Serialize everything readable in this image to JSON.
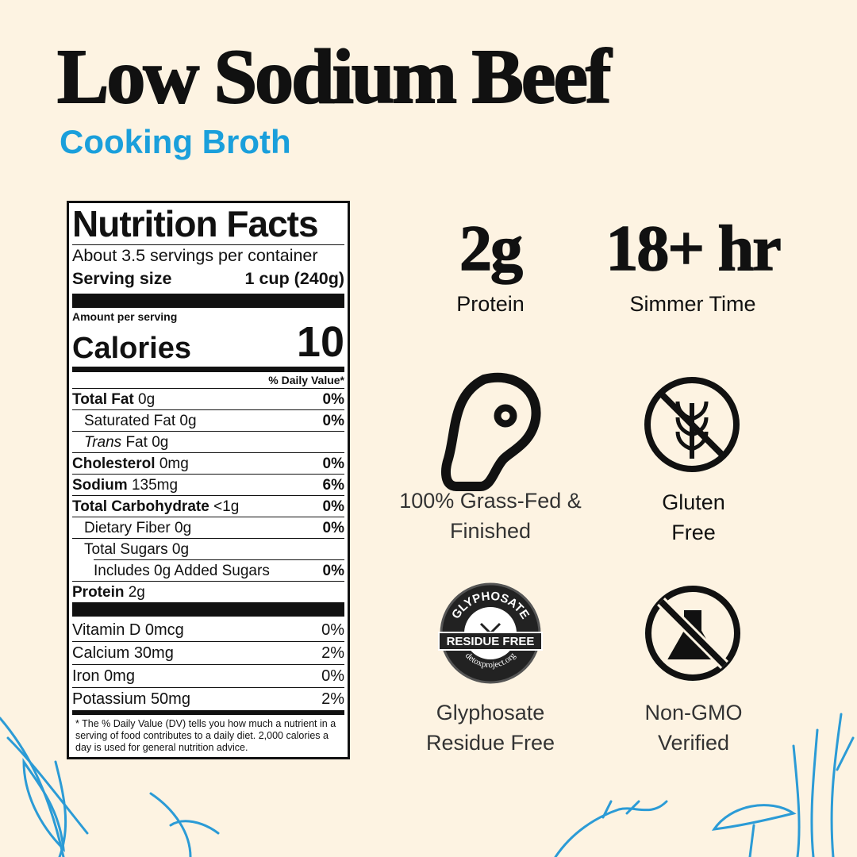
{
  "header": {
    "title": "Low Sodium Beef",
    "subtitle": "Cooking Broth"
  },
  "nutrition": {
    "title": "Nutrition Facts",
    "servings": "About 3.5 servings per container",
    "serving_size_label": "Serving size",
    "serving_size": "1 cup (240g)",
    "amount_per_serving": "Amount per serving",
    "calories_label": "Calories",
    "calories": "10",
    "dv_header": "% Daily Value*",
    "rows": [
      {
        "name": "Total Fat",
        "amount": "0g",
        "dv": "0%"
      },
      {
        "name": "Saturated Fat",
        "amount": "0g",
        "dv": "0%"
      },
      {
        "prefix": "Trans",
        "name": "Fat",
        "amount": "0g"
      },
      {
        "name": "Cholesterol",
        "amount": "0mg",
        "dv": "0%"
      },
      {
        "name": "Sodium",
        "amount": "135mg",
        "dv": "6%"
      },
      {
        "name": "Total Carbohydrate",
        "amount": "<1g",
        "dv": "0%"
      },
      {
        "name": "Dietary Fiber",
        "amount": "0g",
        "dv": "0%"
      },
      {
        "name": "Total Sugars",
        "amount": "0g"
      },
      {
        "name": "Includes 0g Added Sugars",
        "dv": "0%"
      },
      {
        "name": "Protein",
        "amount": "2g"
      }
    ],
    "micronutrients": [
      {
        "name": "Vitamin D",
        "amount": "0mcg",
        "dv": "0%"
      },
      {
        "name": "Calcium",
        "amount": "30mg",
        "dv": "2%"
      },
      {
        "name": "Iron",
        "amount": "0mg",
        "dv": "0%"
      },
      {
        "name": "Potassium",
        "amount": "50mg",
        "dv": "2%"
      }
    ],
    "footnote": "* The % Daily Value (DV) tells you how much a nutrient in a serving of food contributes to a daily diet. 2,000 calories a day is used for general nutrition advice."
  },
  "stats": [
    {
      "value": "2g",
      "label": "Protein"
    },
    {
      "value": "18+ hr",
      "label": "Simmer Time"
    }
  ],
  "badges": [
    {
      "label": "100% Grass-Fed & Finished"
    },
    {
      "label": "Gluten Free"
    },
    {
      "label": "Glyphosate Residue Free",
      "seal_top": "GLYPHOSATE",
      "seal_ribbon": "RESIDUE FREE",
      "seal_bottom": "detoxproject.org"
    },
    {
      "label": "Non-GMO Verified"
    }
  ]
}
